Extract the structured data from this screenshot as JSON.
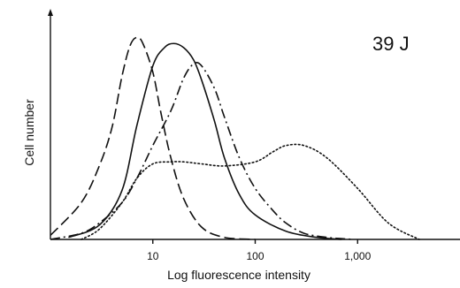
{
  "chart_data": {
    "type": "line",
    "xlabel": "Log fluorescence intensity",
    "ylabel": "Cell number",
    "annotation": "39 J",
    "x_scale": "log",
    "xlim": [
      1,
      10000
    ],
    "ylim": [
      0,
      100
    ],
    "x_ticks": [
      {
        "value": 10,
        "label": "10"
      },
      {
        "value": 100,
        "label": "100"
      },
      {
        "value": 1000,
        "label": "1,000"
      }
    ],
    "grid": false,
    "legend": "none",
    "series": [
      {
        "style": "dashed",
        "x": [
          1,
          2,
          3,
          4,
          5,
          6,
          7,
          8,
          10,
          12,
          15,
          20,
          30,
          50,
          100
        ],
        "y": [
          2,
          18,
          36,
          55,
          80,
          95,
          99,
          96,
          82,
          62,
          40,
          20,
          6,
          1,
          0
        ]
      },
      {
        "style": "solid",
        "x": [
          1.5,
          3,
          5,
          7,
          10,
          13,
          16,
          20,
          25,
          30,
          40,
          50,
          70,
          100,
          200,
          400,
          700
        ],
        "y": [
          1,
          7,
          24,
          56,
          85,
          94,
          96,
          94,
          88,
          78,
          58,
          40,
          22,
          12,
          4,
          1,
          0
        ]
      },
      {
        "style": "dash-dot",
        "x": [
          1,
          2,
          3,
          5,
          7,
          10,
          15,
          20,
          25,
          30,
          40,
          50,
          70,
          100,
          150,
          200,
          300,
          500,
          900
        ],
        "y": [
          0,
          3,
          8,
          18,
          30,
          46,
          63,
          79,
          86,
          85,
          74,
          60,
          40,
          25,
          14,
          8,
          3,
          1,
          0
        ]
      },
      {
        "style": "dotted",
        "x": [
          2,
          3,
          5,
          7,
          10,
          15,
          20,
          30,
          50,
          100,
          150,
          200,
          300,
          500,
          1000,
          2000,
          4000
        ],
        "y": [
          0,
          5,
          18,
          30,
          37,
          38,
          38,
          37,
          36,
          38,
          43,
          46,
          46,
          40,
          25,
          8,
          0
        ]
      }
    ]
  }
}
